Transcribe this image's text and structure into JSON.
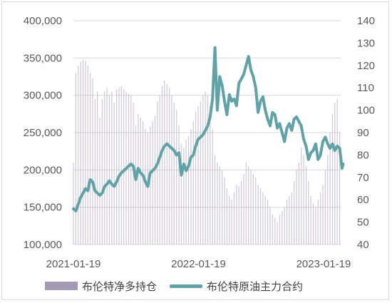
{
  "chart_data": {
    "type": "bar+line",
    "title": "",
    "x": {
      "tick_labels": [
        "2021-01-19",
        "2022-01-19",
        "2023-01-19"
      ],
      "range": [
        "2021-01-19",
        "2023-03-10"
      ]
    },
    "y_left": {
      "range": [
        100000,
        400000
      ],
      "ticks": [
        "100,000",
        "150,000",
        "200,000",
        "250,000",
        "300,000",
        "350,000",
        "400,000"
      ]
    },
    "y_right": {
      "range": [
        40,
        140
      ],
      "ticks": [
        "40",
        "50",
        "60",
        "70",
        "80",
        "90",
        "100",
        "110",
        "120",
        "130",
        "140"
      ]
    },
    "series": [
      {
        "name": "布伦特净多持仓",
        "type": "bar",
        "axis": "left",
        "color": "#a59ab5",
        "values": [
          [
            "2021-01-19",
            210000
          ],
          [
            "2021-01-26",
            330000
          ],
          [
            "2021-02-02",
            340000
          ],
          [
            "2021-02-09",
            345000
          ],
          [
            "2021-02-16",
            348000
          ],
          [
            "2021-02-23",
            346000
          ],
          [
            "2021-03-02",
            340000
          ],
          [
            "2021-03-09",
            330000
          ],
          [
            "2021-03-16",
            322000
          ],
          [
            "2021-03-23",
            295000
          ],
          [
            "2021-03-30",
            305000
          ],
          [
            "2021-04-06",
            270000
          ],
          [
            "2021-04-13",
            295000
          ],
          [
            "2021-04-20",
            305000
          ],
          [
            "2021-04-27",
            310000
          ],
          [
            "2021-05-04",
            300000
          ],
          [
            "2021-05-11",
            305000
          ],
          [
            "2021-05-18",
            290000
          ],
          [
            "2021-05-25",
            308000
          ],
          [
            "2021-06-01",
            310000
          ],
          [
            "2021-06-08",
            312000
          ],
          [
            "2021-06-15",
            308000
          ],
          [
            "2021-06-22",
            305000
          ],
          [
            "2021-06-29",
            302000
          ],
          [
            "2021-07-06",
            300000
          ],
          [
            "2021-07-13",
            290000
          ],
          [
            "2021-07-20",
            260000
          ],
          [
            "2021-07-27",
            275000
          ],
          [
            "2021-08-03",
            270000
          ],
          [
            "2021-08-10",
            265000
          ],
          [
            "2021-08-17",
            255000
          ],
          [
            "2021-08-24",
            250000
          ],
          [
            "2021-08-31",
            258000
          ],
          [
            "2021-09-07",
            265000
          ],
          [
            "2021-09-14",
            272000
          ],
          [
            "2021-09-21",
            292000
          ],
          [
            "2021-09-28",
            300000
          ],
          [
            "2021-10-05",
            312000
          ],
          [
            "2021-10-12",
            320000
          ],
          [
            "2021-10-19",
            315000
          ],
          [
            "2021-10-26",
            310000
          ],
          [
            "2021-11-02",
            300000
          ],
          [
            "2021-11-09",
            290000
          ],
          [
            "2021-11-16",
            280000
          ],
          [
            "2021-11-23",
            260000
          ],
          [
            "2021-11-30",
            235000
          ],
          [
            "2021-12-07",
            230000
          ],
          [
            "2021-12-14",
            240000
          ],
          [
            "2021-12-21",
            245000
          ],
          [
            "2021-12-28",
            255000
          ],
          [
            "2022-01-04",
            265000
          ],
          [
            "2022-01-11",
            278000
          ],
          [
            "2022-01-18",
            285000
          ],
          [
            "2022-01-25",
            292000
          ],
          [
            "2022-02-01",
            300000
          ],
          [
            "2022-02-08",
            305000
          ],
          [
            "2022-02-15",
            300000
          ],
          [
            "2022-02-22",
            285000
          ],
          [
            "2022-03-01",
            255000
          ],
          [
            "2022-03-08",
            220000
          ],
          [
            "2022-03-15",
            210000
          ],
          [
            "2022-03-22",
            205000
          ],
          [
            "2022-03-29",
            200000
          ],
          [
            "2022-04-05",
            190000
          ],
          [
            "2022-04-12",
            175000
          ],
          [
            "2022-04-19",
            165000
          ],
          [
            "2022-04-26",
            160000
          ],
          [
            "2022-05-03",
            170000
          ],
          [
            "2022-05-10",
            180000
          ],
          [
            "2022-05-17",
            178000
          ],
          [
            "2022-05-24",
            185000
          ],
          [
            "2022-05-31",
            195000
          ],
          [
            "2022-06-07",
            210000
          ],
          [
            "2022-06-14",
            205000
          ],
          [
            "2022-06-21",
            200000
          ],
          [
            "2022-06-28",
            195000
          ],
          [
            "2022-07-05",
            190000
          ],
          [
            "2022-07-12",
            180000
          ],
          [
            "2022-07-19",
            175000
          ],
          [
            "2022-07-26",
            170000
          ],
          [
            "2022-08-02",
            165000
          ],
          [
            "2022-08-09",
            160000
          ],
          [
            "2022-08-16",
            150000
          ],
          [
            "2022-08-23",
            140000
          ],
          [
            "2022-08-30",
            135000
          ],
          [
            "2022-09-06",
            130000
          ],
          [
            "2022-09-13",
            140000
          ],
          [
            "2022-09-20",
            145000
          ],
          [
            "2022-09-27",
            150000
          ],
          [
            "2022-10-04",
            160000
          ],
          [
            "2022-10-11",
            165000
          ],
          [
            "2022-10-18",
            170000
          ],
          [
            "2022-10-25",
            185000
          ],
          [
            "2022-11-01",
            200000
          ],
          [
            "2022-11-08",
            210000
          ],
          [
            "2022-11-15",
            230000
          ],
          [
            "2022-11-22",
            220000
          ],
          [
            "2022-11-29",
            205000
          ],
          [
            "2022-12-06",
            185000
          ],
          [
            "2022-12-13",
            165000
          ],
          [
            "2022-12-20",
            155000
          ],
          [
            "2022-12-27",
            150000
          ],
          [
            "2023-01-03",
            160000
          ],
          [
            "2023-01-10",
            170000
          ],
          [
            "2023-01-17",
            180000
          ],
          [
            "2023-01-24",
            200000
          ],
          [
            "2023-01-31",
            220000
          ],
          [
            "2023-02-07",
            250000
          ],
          [
            "2023-02-14",
            275000
          ],
          [
            "2023-02-21",
            290000
          ],
          [
            "2023-02-28",
            295000
          ],
          [
            "2023-03-07",
            250000
          ]
        ]
      },
      {
        "name": "布伦特原油主力合约",
        "type": "line",
        "axis": "right",
        "color": "#5fa3a9",
        "values": [
          [
            "2021-01-19",
            56
          ],
          [
            "2021-01-26",
            55
          ],
          [
            "2021-02-02",
            58
          ],
          [
            "2021-02-09",
            61
          ],
          [
            "2021-02-16",
            63
          ],
          [
            "2021-02-23",
            65
          ],
          [
            "2021-03-02",
            64
          ],
          [
            "2021-03-09",
            69
          ],
          [
            "2021-03-16",
            68
          ],
          [
            "2021-03-23",
            64
          ],
          [
            "2021-03-30",
            63
          ],
          [
            "2021-04-06",
            62
          ],
          [
            "2021-04-13",
            63
          ],
          [
            "2021-04-20",
            66
          ],
          [
            "2021-04-27",
            67
          ],
          [
            "2021-05-04",
            68.5
          ],
          [
            "2021-05-11",
            67
          ],
          [
            "2021-05-18",
            66
          ],
          [
            "2021-05-25",
            68
          ],
          [
            "2021-06-01",
            70.5
          ],
          [
            "2021-06-08",
            72
          ],
          [
            "2021-06-15",
            73
          ],
          [
            "2021-06-22",
            74
          ],
          [
            "2021-06-29",
            75
          ],
          [
            "2021-07-06",
            76
          ],
          [
            "2021-07-13",
            75
          ],
          [
            "2021-07-20",
            69
          ],
          [
            "2021-07-27",
            74
          ],
          [
            "2021-08-03",
            72
          ],
          [
            "2021-08-10",
            71
          ],
          [
            "2021-08-17",
            68
          ],
          [
            "2021-08-24",
            66
          ],
          [
            "2021-08-31",
            72
          ],
          [
            "2021-09-07",
            73
          ],
          [
            "2021-09-14",
            74
          ],
          [
            "2021-09-21",
            76
          ],
          [
            "2021-09-28",
            79
          ],
          [
            "2021-10-05",
            82
          ],
          [
            "2021-10-12",
            84
          ],
          [
            "2021-10-19",
            85
          ],
          [
            "2021-10-26",
            84
          ],
          [
            "2021-11-02",
            83
          ],
          [
            "2021-11-09",
            82
          ],
          [
            "2021-11-16",
            80
          ],
          [
            "2021-11-23",
            81
          ],
          [
            "2021-11-30",
            71
          ],
          [
            "2021-12-07",
            76
          ],
          [
            "2021-12-14",
            73
          ],
          [
            "2021-12-21",
            75
          ],
          [
            "2021-12-28",
            79
          ],
          [
            "2022-01-04",
            80
          ],
          [
            "2022-01-11",
            84
          ],
          [
            "2022-01-18",
            87
          ],
          [
            "2022-01-25",
            88
          ],
          [
            "2022-02-01",
            89
          ],
          [
            "2022-02-08",
            91
          ],
          [
            "2022-02-15",
            93
          ],
          [
            "2022-02-22",
            97
          ],
          [
            "2022-03-01",
            105
          ],
          [
            "2022-03-08",
            128
          ],
          [
            "2022-03-15",
            100
          ],
          [
            "2022-03-22",
            115
          ],
          [
            "2022-03-29",
            111
          ],
          [
            "2022-04-05",
            104
          ],
          [
            "2022-04-12",
            98
          ],
          [
            "2022-04-19",
            107
          ],
          [
            "2022-04-26",
            104
          ],
          [
            "2022-05-03",
            105
          ],
          [
            "2022-05-10",
            102
          ],
          [
            "2022-05-17",
            112
          ],
          [
            "2022-05-24",
            114
          ],
          [
            "2022-05-31",
            116
          ],
          [
            "2022-06-07",
            120
          ],
          [
            "2022-06-14",
            124
          ],
          [
            "2022-06-21",
            118
          ],
          [
            "2022-06-28",
            115
          ],
          [
            "2022-07-05",
            110
          ],
          [
            "2022-07-12",
            99
          ],
          [
            "2022-07-19",
            104
          ],
          [
            "2022-07-26",
            106
          ],
          [
            "2022-08-02",
            100
          ],
          [
            "2022-08-09",
            96
          ],
          [
            "2022-08-16",
            93
          ],
          [
            "2022-08-23",
            99
          ],
          [
            "2022-08-30",
            98
          ],
          [
            "2022-09-06",
            92
          ],
          [
            "2022-09-13",
            94
          ],
          [
            "2022-09-20",
            90
          ],
          [
            "2022-09-27",
            86
          ],
          [
            "2022-10-04",
            92
          ],
          [
            "2022-10-11",
            94
          ],
          [
            "2022-10-18",
            91
          ],
          [
            "2022-10-25",
            96
          ],
          [
            "2022-11-01",
            97
          ],
          [
            "2022-11-08",
            95
          ],
          [
            "2022-11-15",
            93
          ],
          [
            "2022-11-22",
            87
          ],
          [
            "2022-11-29",
            84
          ],
          [
            "2022-12-06",
            78
          ],
          [
            "2022-12-13",
            81
          ],
          [
            "2022-12-20",
            82
          ],
          [
            "2022-12-27",
            85
          ],
          [
            "2023-01-03",
            78
          ],
          [
            "2023-01-10",
            80
          ],
          [
            "2023-01-17",
            86
          ],
          [
            "2023-01-24",
            88
          ],
          [
            "2023-01-31",
            85
          ],
          [
            "2023-02-07",
            83
          ],
          [
            "2023-02-14",
            85
          ],
          [
            "2023-02-21",
            82
          ],
          [
            "2023-02-28",
            84
          ],
          [
            "2023-03-07",
            83
          ],
          [
            "2023-03-14",
            74
          ],
          [
            "2023-03-17",
            76
          ]
        ]
      }
    ],
    "legend": {
      "placement": "bottom"
    },
    "grid": {
      "horizontal": true,
      "color": "#d9d9d9"
    }
  }
}
